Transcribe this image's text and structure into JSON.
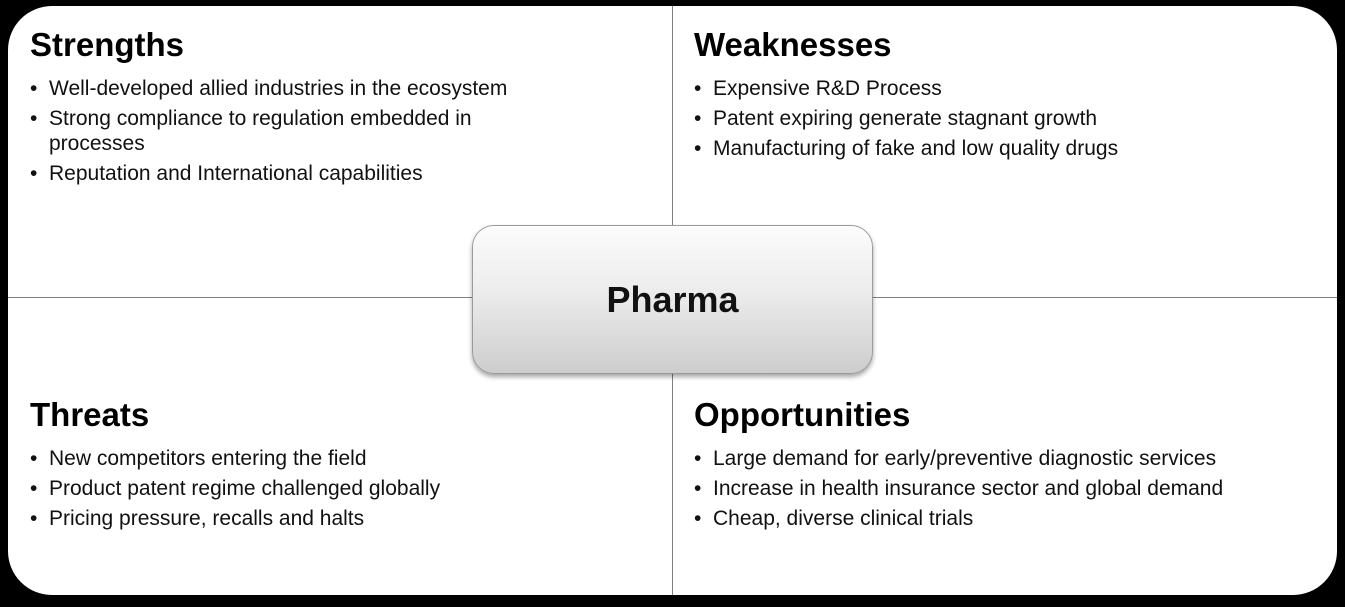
{
  "center": {
    "label": "Pharma"
  },
  "strengths": {
    "title": "Strengths",
    "items": [
      "Well-developed allied industries in the ecosystem",
      "Strong compliance to regulation embedded in processes",
      "Reputation and International capabilities"
    ]
  },
  "weaknesses": {
    "title": "Weaknesses",
    "items": [
      "Expensive R&D Process",
      "Patent expiring generate stagnant growth",
      "Manufacturing of fake and low quality drugs"
    ]
  },
  "threats": {
    "title": "Threats",
    "items": [
      "New competitors entering the field",
      "Product patent regime challenged globally",
      "Pricing pressure, recalls and halts"
    ]
  },
  "opportunities": {
    "title": "Opportunities",
    "items": [
      "Large demand for early/preventive  diagnostic services",
      "Increase in health insurance sector and global demand",
      "Cheap, diverse clinical trials"
    ]
  }
}
